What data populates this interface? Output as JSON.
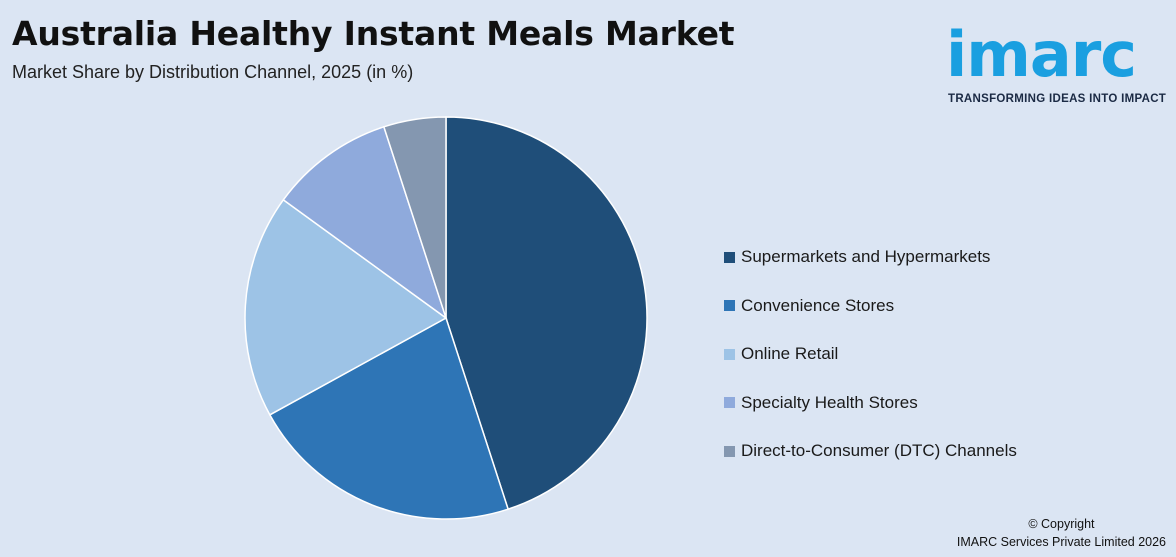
{
  "header": {
    "title": "Australia Healthy Instant Meals Market",
    "subtitle": "Market Share by Distribution Channel, 2025 (in %)"
  },
  "logo": {
    "word": "imarc",
    "tagline": "TRANSFORMING IDEAS INTO IMPACT",
    "color": "#1a9fe0"
  },
  "footer": {
    "copyright_line1": "© Copyright",
    "copyright_line2": "IMARC Services Private Limited 2026"
  },
  "chart_data": {
    "type": "pie",
    "title": "Australia Healthy Instant Meals Market",
    "subtitle": "Market Share by Distribution Channel, 2025 (in %)",
    "legend_position": "right",
    "slices": [
      {
        "label": "Supermarkets and Hypermarkets",
        "value": 45,
        "color": "#1f4e79"
      },
      {
        "label": "Convenience Stores",
        "value": 22,
        "color": "#2e75b6"
      },
      {
        "label": "Online Retail",
        "value": 18,
        "color": "#9dc3e6"
      },
      {
        "label": "Specialty Health Stores",
        "value": 10,
        "color": "#8faadc"
      },
      {
        "label": "Direct-to-Consumer (DTC) Channels",
        "value": 5,
        "color": "#8497b0"
      }
    ]
  }
}
